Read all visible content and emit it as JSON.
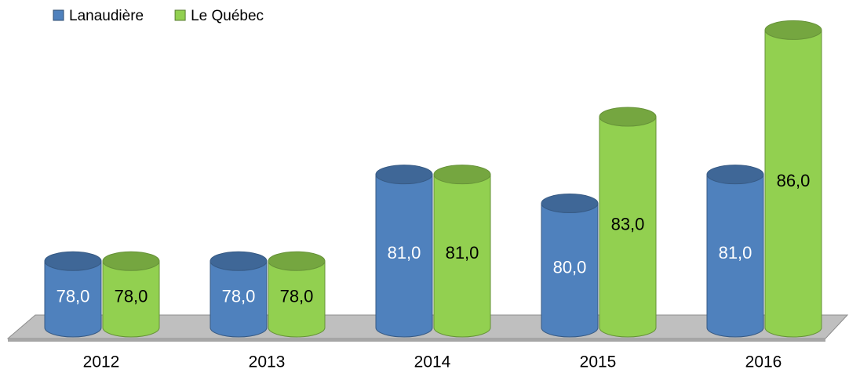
{
  "chart_data": {
    "type": "bar3d",
    "categories": [
      "2012",
      "2013",
      "2014",
      "2015",
      "2016"
    ],
    "series": [
      {
        "name": "Lanaudière",
        "color": "#4f81bd",
        "values": [
          78,
          78,
          81,
          80,
          81
        ],
        "value_labels": [
          "78,0",
          "78,0",
          "81,0",
          "80,0",
          "81,0"
        ]
      },
      {
        "name": "Le Québec",
        "color": "#92d050",
        "values": [
          78,
          78,
          81,
          83,
          86
        ],
        "value_labels": [
          "78,0",
          "78,0",
          "81,0",
          "83,0",
          "86,0"
        ]
      }
    ],
    "ylim": [
      75.7,
      86.5
    ],
    "legend": "top-left"
  }
}
